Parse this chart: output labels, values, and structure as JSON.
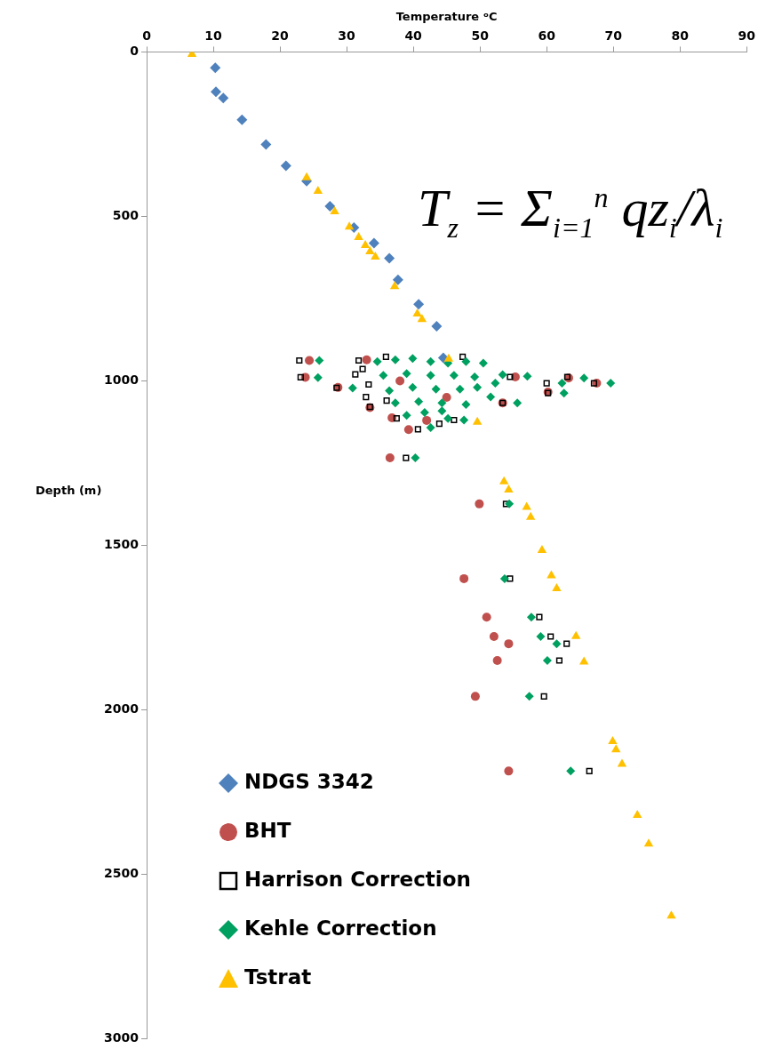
{
  "chart_data": {
    "type": "scatter",
    "xlabel": "Temperature ᵒC",
    "ylabel": "Depth (m)",
    "xlim": [
      0,
      90
    ],
    "xticks": [
      0,
      10,
      20,
      30,
      40,
      50,
      60,
      70,
      80,
      90
    ],
    "ylim": [
      3000,
      0
    ],
    "yticks": [
      0,
      500,
      1000,
      1500,
      2000,
      2500,
      3000
    ],
    "grid": false,
    "legend": "bottom left",
    "annotations": [
      "T$_{z}$ = Σ$_{i=1}$$^{n}$ qz$_{i}$/λ$_{i}$"
    ],
    "series": [
      {
        "name": "NDGS 3342",
        "color": "#4f81bd",
        "marker": "diamond",
        "x": [
          10.3,
          10.4,
          11.5,
          14.3,
          17.9,
          20.9,
          24.0,
          27.5,
          31.1,
          34.1,
          36.4,
          37.7,
          40.8,
          43.5,
          44.5
        ],
        "values": [
          48,
          121,
          140,
          206,
          281,
          346,
          393,
          469,
          534,
          581,
          627,
          693,
          767,
          834,
          930
        ]
      },
      {
        "name": "BHT",
        "color": "#c0504d",
        "marker": "circle",
        "x": [
          49.9,
          47.6,
          51.0,
          52.1,
          54.3,
          52.6,
          49.3,
          54.3,
          36.5,
          24.4,
          23.8,
          28.7,
          39.3,
          33.5,
          36.8,
          55.3,
          63.3,
          67.5,
          60.2,
          53.4,
          33.0,
          45.0,
          38.0,
          42.0
        ],
        "values": [
          1374,
          1601,
          1718,
          1777,
          1799,
          1850,
          1959,
          2186,
          1234,
          938,
          989,
          1020,
          1148,
          1081,
          1112,
          988,
          991,
          1007,
          1034,
          1067,
          936,
          1050,
          1000,
          1120
        ]
      },
      {
        "name": "Harrison Correction",
        "color": "#000000",
        "marker": "square",
        "x": [
          53.9,
          54.5,
          58.9,
          60.6,
          63.0,
          61.9,
          59.6,
          66.4,
          38.9,
          22.9,
          23.1,
          28.5,
          31.8,
          31.3,
          33.5,
          37.5,
          40.7,
          54.5,
          53.4,
          60.0,
          60.2,
          63.1,
          67.1,
          46.1,
          43.9,
          32.9,
          32.4,
          33.3,
          35.9,
          47.4,
          36.0
        ],
        "values": [
          1374,
          1601,
          1718,
          1777,
          1799,
          1850,
          1959,
          2186,
          1234,
          938,
          989,
          1021,
          938,
          980,
          1079,
          1114,
          1147,
          988,
          1067,
          1007,
          1037,
          988,
          1007,
          1119,
          1130,
          1049,
          964,
          1011,
          927,
          927,
          1060
        ]
      },
      {
        "name": "Kehle Correction",
        "color": "#00a060",
        "marker": "diamond",
        "x": [
          54.4,
          53.7,
          57.7,
          59.1,
          61.5,
          60.1,
          57.4,
          63.6,
          40.3,
          25.9,
          25.7,
          30.9,
          57.1,
          55.6,
          62.3,
          62.6,
          65.6,
          69.6,
          47.6,
          53.4,
          52.3,
          51.6,
          34.6,
          37.3,
          39.9,
          42.6,
          45.2,
          47.9,
          50.5,
          35.5,
          39.0,
          42.6,
          46.1,
          49.2,
          36.4,
          39.9,
          43.4,
          47.0,
          49.6,
          37.3,
          40.8,
          44.3,
          47.9,
          39.0,
          41.7,
          44.3,
          42.6,
          45.2
        ],
        "values": [
          1374,
          1601,
          1718,
          1777,
          1799,
          1850,
          1959,
          2186,
          1234,
          938,
          990,
          1022,
          986,
          1067,
          1007,
          1037,
          991,
          1007,
          1119,
          981,
          1007,
          1049,
          941,
          936,
          932,
          941,
          946,
          941,
          946,
          983,
          978,
          983,
          983,
          988,
          1030,
          1020,
          1025,
          1025,
          1020,
          1067,
          1063,
          1067,
          1072,
          1105,
          1096,
          1091,
          1142,
          1114
        ]
      },
      {
        "name": "Tstrat",
        "color": "#ffc000",
        "marker": "triangle",
        "x": [
          6.8,
          24.0,
          25.7,
          28.2,
          30.4,
          31.8,
          32.8,
          33.5,
          34.3,
          37.2,
          40.6,
          41.3,
          45.3,
          49.6,
          53.6,
          54.3,
          57.0,
          57.6,
          59.3,
          60.7,
          61.5,
          64.4,
          65.6,
          69.9,
          70.4,
          71.3,
          73.6,
          75.3,
          78.7
        ],
        "values": [
          7,
          382,
          423,
          485,
          532,
          564,
          588,
          607,
          623,
          713,
          796,
          813,
          933,
          1125,
          1306,
          1331,
          1384,
          1414,
          1515,
          1592,
          1631,
          1776,
          1854,
          2096,
          2121,
          2165,
          2320,
          2407,
          2626
        ]
      }
    ]
  }
}
